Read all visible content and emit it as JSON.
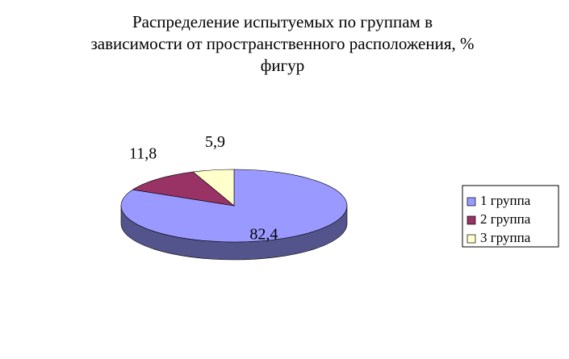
{
  "chart_data": {
    "type": "pie",
    "title": "Распределение испытуемых по группам в зависимости от пространственного расположения, % фигур",
    "categories": [
      "1 группа",
      "2 группа",
      "3 группа"
    ],
    "values": [
      82.4,
      11.8,
      5.9
    ],
    "value_labels": [
      "82,4",
      "11,8",
      "5,9"
    ],
    "colors": [
      "#9999ff",
      "#993366",
      "#ffffcc"
    ],
    "legend": "right"
  }
}
